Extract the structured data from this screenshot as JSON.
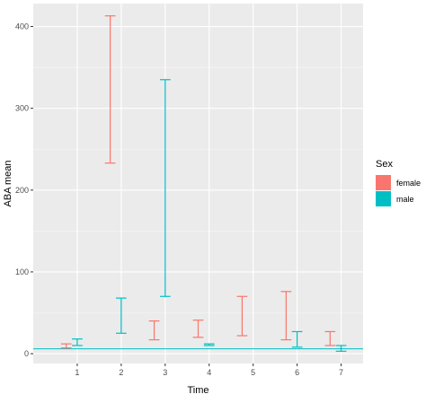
{
  "chart_data": {
    "type": "errorbar",
    "xlabel": "Time",
    "ylabel": "ABA mean",
    "x_ticks": [
      "1",
      "2",
      "3",
      "4",
      "5",
      "6",
      "7"
    ],
    "y_ticks": [
      "0",
      "100",
      "200",
      "300",
      "400"
    ],
    "xlim": [
      0,
      7.5
    ],
    "ylim": [
      -12,
      428
    ],
    "grid": true,
    "legend": {
      "title": "Sex",
      "position": "right",
      "entries": [
        {
          "name": "female",
          "color": "#F8766D"
        },
        {
          "name": "male",
          "color": "#00BFC4"
        }
      ]
    },
    "series": [
      {
        "name": "female",
        "color": "#F8766D",
        "points": [
          {
            "x": 0.75,
            "ymin": 7,
            "ymax": 12
          },
          {
            "x": 1.75,
            "ymin": 233,
            "ymax": 413
          },
          {
            "x": 2.75,
            "ymin": 17,
            "ymax": 40
          },
          {
            "x": 3.75,
            "ymin": 20,
            "ymax": 41
          },
          {
            "x": 4.75,
            "ymin": 22,
            "ymax": 70
          },
          {
            "x": 5.75,
            "ymin": 17,
            "ymax": 76
          },
          {
            "x": 6.75,
            "ymin": 10,
            "ymax": 27
          }
        ]
      },
      {
        "name": "male",
        "color": "#00BFC4",
        "points": [
          {
            "x": 1.0,
            "ymin": 10,
            "ymax": 18
          },
          {
            "x": 2.0,
            "ymin": 25,
            "ymax": 68
          },
          {
            "x": 3.0,
            "ymin": 70,
            "ymax": 335
          },
          {
            "x": 4.0,
            "ymin": 10,
            "ymax": 12
          },
          {
            "x": 6.0,
            "ymin": 8,
            "ymax": 27
          },
          {
            "x": 7.0,
            "ymin": 3,
            "ymax": 10
          }
        ]
      }
    ],
    "reference_line": {
      "y": 6,
      "xmin": 0,
      "xmax": 7.5,
      "color": "#00BFC4"
    }
  }
}
